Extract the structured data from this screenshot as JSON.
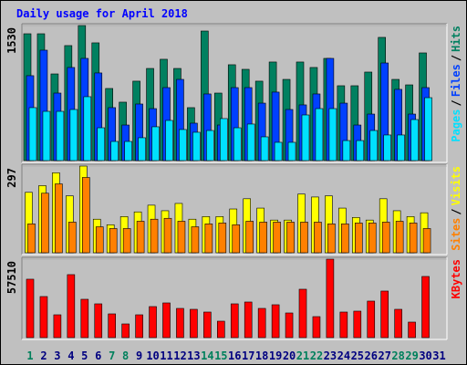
{
  "chart_data": [
    {
      "type": "bar",
      "title": "Daily usage for April 2018",
      "ylim": [
        0,
        1530
      ],
      "yticks": [
        1530
      ],
      "legend_separator": "/",
      "series": [
        {
          "name": "Hits",
          "color": "#008060",
          "values": [
            1437,
            1437,
            982,
            1303,
            1530,
            1334,
            817,
            662,
            900,
            1044,
            1148,
            1044,
            600,
            1468,
            765,
            1086,
            1034,
            900,
            1117,
            920,
            1117,
            1055,
            1158,
            848,
            848,
            1003,
            1396,
            920,
            858,
            1220,
            null
          ]
        },
        {
          "name": "Files",
          "color": "#0040ff",
          "values": [
            962,
            1251,
            765,
            1055,
            1158,
            993,
            600,
            403,
            641,
            589,
            827,
            920,
            424,
            755,
            403,
            827,
            827,
            651,
            776,
            579,
            631,
            755,
            1158,
            651,
            403,
            527,
            1106,
            807,
            527,
            827,
            null
          ]
        },
        {
          "name": "Pages",
          "color": "#00e0ff",
          "values": [
            600,
            558,
            558,
            579,
            724,
            372,
            217,
            217,
            259,
            383,
            455,
            352,
            321,
            341,
            476,
            372,
            414,
            269,
            207,
            207,
            517,
            589,
            589,
            227,
            227,
            341,
            290,
            290,
            465,
            713,
            null
          ]
        }
      ]
    },
    {
      "type": "bar",
      "ylim": [
        0,
        297
      ],
      "yticks": [
        297
      ],
      "legend_separator": "/",
      "series": [
        {
          "name": "Visits",
          "color": "#ffff00",
          "values": [
            207,
            230,
            274,
            195,
            297,
            115,
            96,
            124,
            140,
            163,
            144,
            169,
            115,
            124,
            124,
            150,
            185,
            153,
            112,
            112,
            201,
            191,
            195,
            153,
            121,
            112,
            185,
            144,
            124,
            137,
            null
          ]
        },
        {
          "name": "Sites",
          "color": "#ff8000",
          "values": [
            99,
            204,
            236,
            105,
            258,
            89,
            83,
            83,
            108,
            115,
            118,
            108,
            89,
            99,
            102,
            96,
            108,
            105,
            105,
            105,
            105,
            105,
            99,
            99,
            102,
            102,
            105,
            108,
            102,
            83,
            null
          ]
        }
      ]
    },
    {
      "type": "bar",
      "ylim": [
        0,
        57510
      ],
      "yticks": [
        57510
      ],
      "categories": [
        "1",
        "2",
        "3",
        "4",
        "5",
        "6",
        "7",
        "8",
        "9",
        "10",
        "11",
        "12",
        "13",
        "14",
        "15",
        "16",
        "17",
        "18",
        "19",
        "20",
        "21",
        "22",
        "23",
        "24",
        "25",
        "26",
        "27",
        "28",
        "29",
        "30",
        "31"
      ],
      "category_colors": [
        "#00805c",
        "#000080",
        "#000080",
        "#000080",
        "#000080",
        "#000080",
        "#00805c",
        "#00805c",
        "#000080",
        "#000080",
        "#000080",
        "#000080",
        "#000080",
        "#00805c",
        "#00805c",
        "#000080",
        "#000080",
        "#000080",
        "#000080",
        "#000080",
        "#00805c",
        "#00805c",
        "#000080",
        "#000080",
        "#000080",
        "#000080",
        "#000080",
        "#00805c",
        "#00805c",
        "#000080",
        "#000080"
      ],
      "series": [
        {
          "name": "KBytes",
          "color": "#ff0000",
          "values": [
            42816,
            30105,
            16725,
            46161,
            28098,
            24753,
            17394,
            10035,
            16725,
            22746,
            25422,
            21408,
            20739,
            18732,
            12042,
            24753,
            26091,
            21408,
            24084,
            18063,
            35457,
            15387,
            57510,
            18732,
            19401,
            26760,
            34119,
            20739,
            11373,
            44823,
            null
          ]
        }
      ]
    }
  ]
}
